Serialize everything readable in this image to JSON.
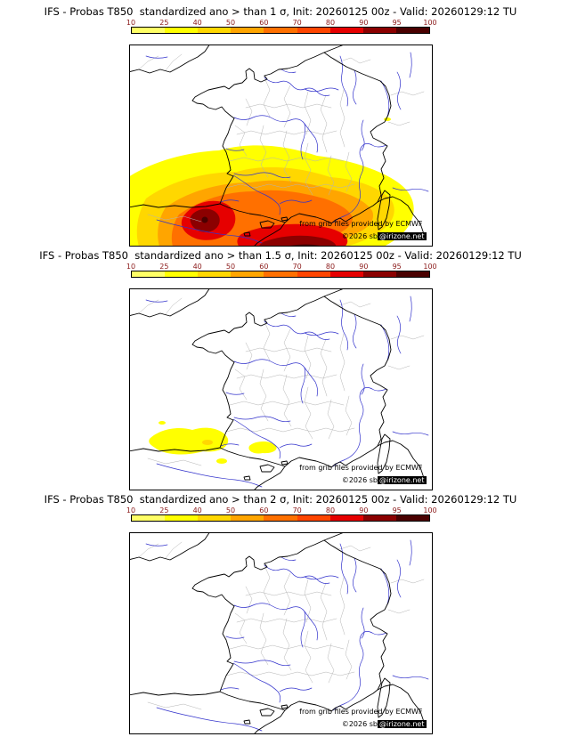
{
  "panels": [
    {
      "title": "IFS - Probas T850  standardized ano > than 1 σ, Init: 20260125 00z - Valid: 20260129:12 TU"
    },
    {
      "title": "IFS - Probas T850  standardized ano > than 1.5 σ, Init: 20260125 00z - Valid: 20260129:12 TU"
    },
    {
      "title": "IFS - Probas T850  standardized ano > than 2 σ, Init: 20260125 00z - Valid: 20260129:12 TU"
    }
  ],
  "colorbar": {
    "ticks": [
      "10",
      "25",
      "40",
      "50",
      "60",
      "70",
      "80",
      "90",
      "95",
      "100"
    ],
    "colors": [
      "#ffff66",
      "#ffff00",
      "#ffd700",
      "#ffa500",
      "#ff7000",
      "#ff4500",
      "#e60000",
      "#8b0000",
      "#4a0000"
    ],
    "tick_color": "#8b1a1a"
  },
  "attribution": {
    "line1": "from grib files provided by ECMWF",
    "line2_left": "©2026 sb",
    "line2_right": "@irizone.net"
  },
  "map_colors": {
    "coast": "#000000",
    "rivers": "#3333cc",
    "admin": "#b4b4b4"
  }
}
